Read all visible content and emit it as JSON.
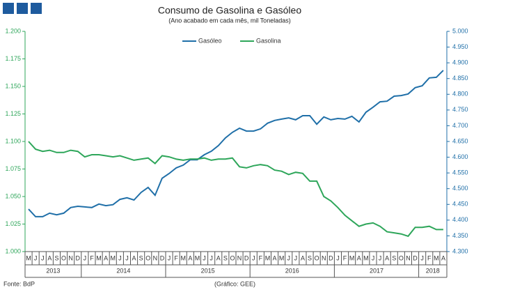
{
  "chart_data": {
    "type": "line",
    "title": "Consumo de Gasolina e Gasóleo",
    "subtitle": "(Ano acabado em cada mês, mil Toneladas)",
    "source": "Fonte: BdP",
    "credit": "(Gráfico: GEE)",
    "categories": [
      "M",
      "J",
      "J",
      "A",
      "S",
      "O",
      "N",
      "D",
      "J",
      "F",
      "M",
      "A",
      "M",
      "J",
      "J",
      "A",
      "S",
      "O",
      "N",
      "D",
      "J",
      "F",
      "M",
      "A",
      "M",
      "J",
      "J",
      "A",
      "S",
      "O",
      "N",
      "D",
      "J",
      "F",
      "M",
      "A",
      "M",
      "J",
      "J",
      "A",
      "S",
      "O",
      "N",
      "D",
      "J",
      "F",
      "M",
      "A",
      "M",
      "J",
      "J",
      "A",
      "S",
      "O",
      "N",
      "D",
      "J",
      "F",
      "M",
      "A"
    ],
    "years": [
      "2013",
      "2014",
      "2015",
      "2016",
      "2017",
      "2018"
    ],
    "series": [
      {
        "name": "Gasóleo",
        "color": "#1f6fa8",
        "axis": "y2",
        "values": [
          4435,
          4411,
          4411,
          4422,
          4417,
          4422,
          4440,
          4444,
          4442,
          4440,
          4451,
          4446,
          4449,
          4466,
          4471,
          4464,
          4488,
          4504,
          4479,
          4533,
          4548,
          4566,
          4575,
          4592,
          4592,
          4608,
          4619,
          4637,
          4661,
          4679,
          4692,
          4683,
          4683,
          4690,
          4708,
          4717,
          4721,
          4725,
          4719,
          4732,
          4732,
          4705,
          4728,
          4719,
          4723,
          4721,
          4730,
          4712,
          4743,
          4759,
          4776,
          4778,
          4794,
          4796,
          4801,
          4821,
          4827,
          4852,
          4854,
          4876
        ]
      },
      {
        "name": "Gasolina",
        "color": "#2ea65a",
        "values": [
          1100,
          1093,
          1091,
          1092,
          1090,
          1090,
          1092,
          1091,
          1086,
          1088,
          1088,
          1087,
          1086,
          1087,
          1085,
          1083,
          1084,
          1085,
          1080,
          1087,
          1086,
          1084,
          1083,
          1084,
          1084,
          1085,
          1083,
          1084,
          1084,
          1085,
          1077,
          1076,
          1078,
          1079,
          1078,
          1074,
          1073,
          1070,
          1072,
          1071,
          1064,
          1064,
          1050,
          1046,
          1040,
          1033,
          1028,
          1023,
          1025,
          1026,
          1023,
          1018,
          1017,
          1016,
          1014,
          1022,
          1022,
          1023,
          1020,
          1020
        ]
      }
    ],
    "ylim": [
      1000,
      1200
    ],
    "yticks": [
      {
        "value": 1000,
        "label": "1.000"
      },
      {
        "value": 1025,
        "label": "1.025"
      },
      {
        "value": 1050,
        "label": "1.050"
      },
      {
        "value": 1075,
        "label": "1.075"
      },
      {
        "value": 1100,
        "label": "1.100"
      },
      {
        "value": 1125,
        "label": "1.125"
      },
      {
        "value": 1150,
        "label": "1.150"
      },
      {
        "value": 1175,
        "label": "1.175"
      },
      {
        "value": 1200,
        "label": "1.200"
      }
    ],
    "y2lim": [
      4300,
      5000
    ],
    "y2ticks": [
      {
        "value": 4300,
        "label": "4.300"
      },
      {
        "value": 4350,
        "label": "4.350"
      },
      {
        "value": 4400,
        "label": "4.400"
      },
      {
        "value": 4450,
        "label": "4.450"
      },
      {
        "value": 4500,
        "label": "4.500"
      },
      {
        "value": 4550,
        "label": "4.550"
      },
      {
        "value": 4600,
        "label": "4.600"
      },
      {
        "value": 4650,
        "label": "4.650"
      },
      {
        "value": 4700,
        "label": "4.700"
      },
      {
        "value": 4750,
        "label": "4.750"
      },
      {
        "value": 4800,
        "label": "4.800"
      },
      {
        "value": 4850,
        "label": "4.850"
      },
      {
        "value": 4900,
        "label": "4.900"
      },
      {
        "value": 4950,
        "label": "4.950"
      },
      {
        "value": 5000,
        "label": "5.000"
      }
    ],
    "legend": "top"
  }
}
